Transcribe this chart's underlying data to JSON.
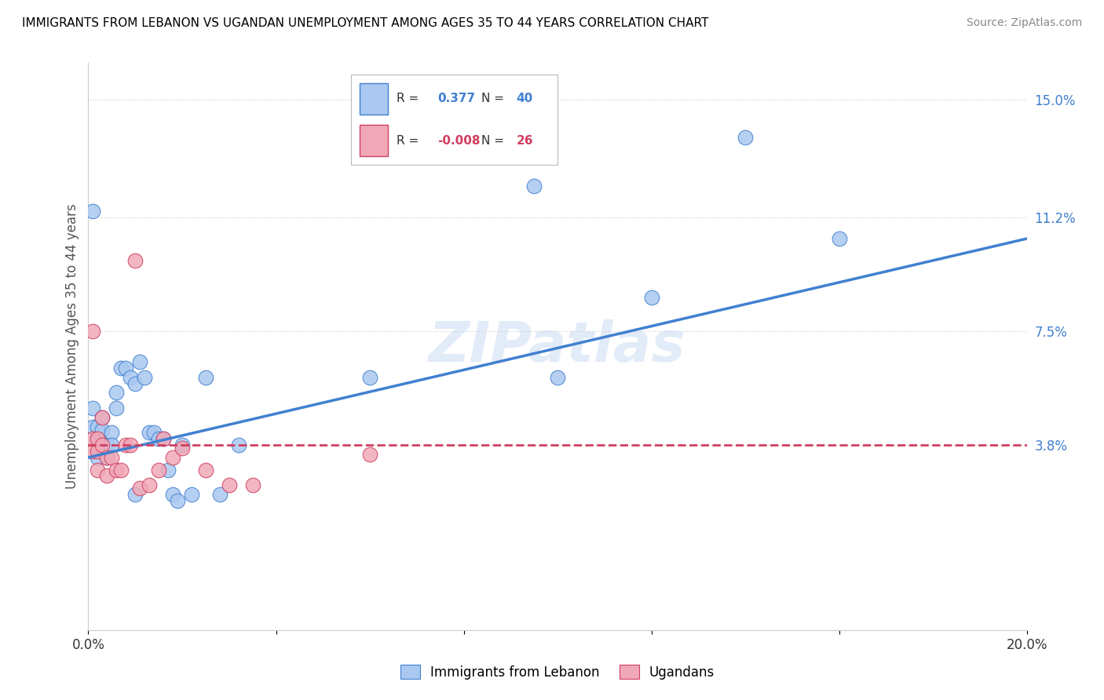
{
  "title": "IMMIGRANTS FROM LEBANON VS UGANDAN UNEMPLOYMENT AMONG AGES 35 TO 44 YEARS CORRELATION CHART",
  "source": "Source: ZipAtlas.com",
  "ylabel": "Unemployment Among Ages 35 to 44 years",
  "legend_label1": "Immigrants from Lebanon",
  "legend_label2": "Ugandans",
  "r1": 0.377,
  "n1": 40,
  "r2": -0.008,
  "n2": 26,
  "color1": "#aac8f0",
  "color2": "#f0a8b8",
  "line_color1": "#4080d0",
  "line_color2": "#d04060",
  "xlim": [
    0.0,
    0.2
  ],
  "ylim": [
    -0.022,
    0.162
  ],
  "ytick_right_vals": [
    0.038,
    0.075,
    0.112,
    0.15
  ],
  "ytick_right_labels": [
    "3.8%",
    "7.5%",
    "11.2%",
    "15.0%"
  ],
  "watermark": "ZIPatlas",
  "blue_x": [
    0.001,
    0.001,
    0.001,
    0.002,
    0.002,
    0.002,
    0.003,
    0.003,
    0.003,
    0.004,
    0.004,
    0.005,
    0.005,
    0.006,
    0.006,
    0.007,
    0.008,
    0.009,
    0.01,
    0.01,
    0.011,
    0.012,
    0.013,
    0.014,
    0.015,
    0.016,
    0.017,
    0.018,
    0.019,
    0.02,
    0.022,
    0.025,
    0.028,
    0.032,
    0.06,
    0.095,
    0.1,
    0.12,
    0.14,
    0.16
  ],
  "blue_y": [
    0.114,
    0.05,
    0.044,
    0.044,
    0.04,
    0.034,
    0.047,
    0.043,
    0.038,
    0.038,
    0.034,
    0.042,
    0.038,
    0.055,
    0.05,
    0.063,
    0.063,
    0.06,
    0.058,
    0.022,
    0.065,
    0.06,
    0.042,
    0.042,
    0.04,
    0.04,
    0.03,
    0.022,
    0.02,
    0.038,
    0.022,
    0.06,
    0.022,
    0.038,
    0.06,
    0.122,
    0.06,
    0.086,
    0.138,
    0.105
  ],
  "pink_x": [
    0.001,
    0.001,
    0.001,
    0.002,
    0.002,
    0.002,
    0.003,
    0.003,
    0.004,
    0.004,
    0.005,
    0.006,
    0.007,
    0.008,
    0.009,
    0.01,
    0.011,
    0.013,
    0.015,
    0.016,
    0.018,
    0.02,
    0.025,
    0.03,
    0.035,
    0.06
  ],
  "pink_y": [
    0.075,
    0.04,
    0.036,
    0.04,
    0.036,
    0.03,
    0.047,
    0.038,
    0.034,
    0.028,
    0.034,
    0.03,
    0.03,
    0.038,
    0.038,
    0.098,
    0.024,
    0.025,
    0.03,
    0.04,
    0.034,
    0.037,
    0.03,
    0.025,
    0.025,
    0.035
  ],
  "blue_line_x0": 0.0,
  "blue_line_y0": 0.034,
  "blue_line_x1": 0.2,
  "blue_line_y1": 0.105,
  "pink_line_x0": 0.0,
  "pink_line_y0": 0.038,
  "pink_line_x1": 0.2,
  "pink_line_y1": 0.038
}
